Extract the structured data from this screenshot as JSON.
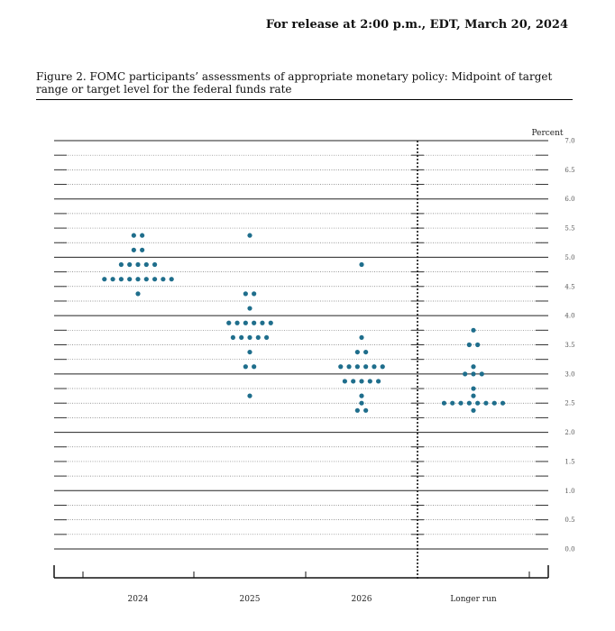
{
  "header": {
    "release": "For release at 2:00 p.m., EDT, March 20, 2024"
  },
  "figure": {
    "caption": "Figure 2.  FOMC participants’ assessments of appropriate monetary policy:  Midpoint of target range or target level for the federal funds rate"
  },
  "chart_data": {
    "type": "scatter",
    "subtype": "dot plot",
    "categories": [
      "2024",
      "2025",
      "2026",
      "Longer run"
    ],
    "ylabel": "Percent",
    "ylim": [
      0.0,
      7.0
    ],
    "yticks": [
      "0.0",
      "0.5",
      "1.0",
      "1.5",
      "2.0",
      "2.5",
      "3.0",
      "3.5",
      "4.0",
      "4.5",
      "5.0",
      "5.5",
      "6.0",
      "6.5",
      "7.0"
    ],
    "grid": true,
    "dot_color": "#1f6e8c",
    "series": [
      {
        "values": [
          {
            "y": 5.375,
            "count": 2
          },
          {
            "y": 5.125,
            "count": 2
          },
          {
            "y": 4.875,
            "count": 5
          },
          {
            "y": 4.625,
            "count": 9
          },
          {
            "y": 4.375,
            "count": 1
          }
        ]
      },
      {
        "values": [
          {
            "y": 5.375,
            "count": 1
          },
          {
            "y": 4.375,
            "count": 2
          },
          {
            "y": 4.125,
            "count": 1
          },
          {
            "y": 3.875,
            "count": 6
          },
          {
            "y": 3.625,
            "count": 5
          },
          {
            "y": 3.375,
            "count": 1
          },
          {
            "y": 3.125,
            "count": 2
          },
          {
            "y": 2.625,
            "count": 1
          }
        ]
      },
      {
        "values": [
          {
            "y": 4.875,
            "count": 1
          },
          {
            "y": 3.625,
            "count": 1
          },
          {
            "y": 3.375,
            "count": 2
          },
          {
            "y": 3.125,
            "count": 6
          },
          {
            "y": 2.875,
            "count": 5
          },
          {
            "y": 2.625,
            "count": 1
          },
          {
            "y": 2.5,
            "count": 1
          },
          {
            "y": 2.375,
            "count": 2
          }
        ]
      },
      {
        "values": [
          {
            "y": 3.75,
            "count": 1
          },
          {
            "y": 3.5,
            "count": 2
          },
          {
            "y": 3.125,
            "count": 1
          },
          {
            "y": 3.0,
            "count": 3
          },
          {
            "y": 2.75,
            "count": 1
          },
          {
            "y": 2.625,
            "count": 1
          },
          {
            "y": 2.5,
            "count": 8
          },
          {
            "y": 2.375,
            "count": 1
          }
        ]
      }
    ]
  }
}
